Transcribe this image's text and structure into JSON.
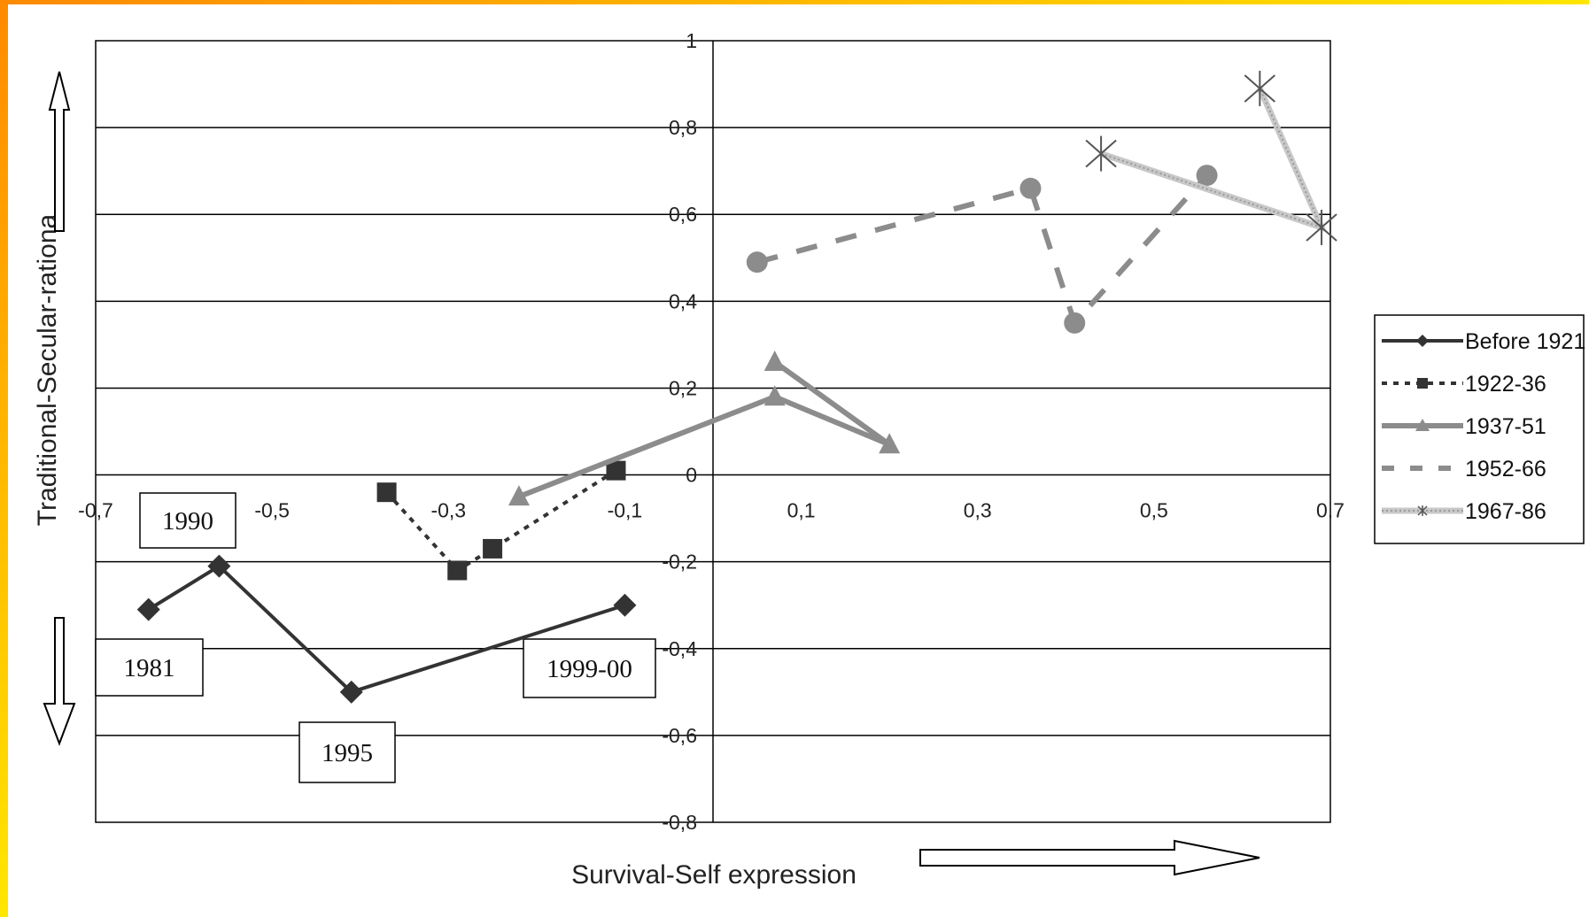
{
  "chart_data": {
    "type": "line",
    "title": "",
    "xlabel": "Survival-Self expression",
    "ylabel": "Traditional-Secular-rationa",
    "xlim": [
      -0.7,
      0.7
    ],
    "ylim": [
      -0.8,
      1
    ],
    "x_ticks": [
      "-0,7",
      "-0,5",
      "-0,3",
      "-0,1",
      "0,1",
      "0,3",
      "0,5",
      "0,7"
    ],
    "y_ticks": [
      "1",
      "0,8",
      "0,6",
      "0,4",
      "0,2",
      "0",
      "-0,2",
      "-0,4",
      "-0,6",
      "-0,8"
    ],
    "grid": "horizontal",
    "legend_position": "right",
    "series": [
      {
        "name": "Before 1921",
        "style": "solid",
        "marker": "diamond",
        "color": "#333333",
        "points": [
          [
            -0.64,
            -0.31
          ],
          [
            -0.56,
            -0.21
          ],
          [
            -0.41,
            -0.5
          ],
          [
            -0.1,
            -0.3
          ]
        ]
      },
      {
        "name": "1922-36",
        "style": "dotted",
        "marker": "square",
        "color": "#333333",
        "points": [
          [
            -0.37,
            -0.04
          ],
          [
            -0.29,
            -0.22
          ],
          [
            -0.25,
            -0.17
          ],
          [
            -0.11,
            0.01
          ]
        ]
      },
      {
        "name": "1937-51",
        "style": "solid",
        "marker": "triangle",
        "color": "#8c8c8c",
        "points": [
          [
            -0.22,
            -0.05
          ],
          [
            0.07,
            0.18
          ],
          [
            0.2,
            0.07
          ],
          [
            0.07,
            0.26
          ]
        ]
      },
      {
        "name": "1952-66",
        "style": "dashed",
        "marker": "circle",
        "color": "#8c8c8c",
        "points": [
          [
            0.05,
            0.49
          ],
          [
            0.36,
            0.66
          ],
          [
            0.41,
            0.35
          ],
          [
            0.56,
            0.69
          ]
        ]
      },
      {
        "name": "1967-86",
        "style": "hatched",
        "marker": "star",
        "color": "#aaaaaa",
        "points": [
          [
            0.44,
            0.74
          ],
          [
            0.69,
            0.57
          ],
          [
            0.62,
            0.89
          ]
        ]
      }
    ],
    "annotations": [
      {
        "text": "1990"
      },
      {
        "text": "1981"
      },
      {
        "text": "1995"
      },
      {
        "text": "1999-00"
      }
    ]
  },
  "colors": {
    "frame_gradient_start": "#ff8a00",
    "frame_gradient_end": "#ffe600",
    "grid": "#000000"
  }
}
